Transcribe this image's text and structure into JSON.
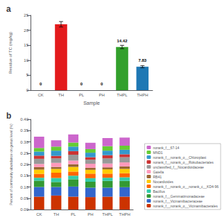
{
  "chart_data": [
    {
      "type": "bar",
      "title": "a",
      "categories": [
        "CK",
        "TH",
        "PL",
        "PH",
        "THPL",
        "THPH"
      ],
      "values": [
        0,
        22,
        0,
        0,
        14.42,
        7.83
      ],
      "errors": [
        0,
        0.9,
        0,
        0,
        0.55,
        0.35
      ],
      "colors": [
        "#e31a1c",
        "#e31a1c",
        "#e31a1c",
        "#e31a1c",
        "#33a02c",
        "#1f78b4"
      ],
      "data_labels": true,
      "value_labels": [
        "0",
        null,
        "0",
        "0",
        "14.42",
        "7.83"
      ],
      "xlabel": "Sample",
      "ylabel": "Residue of TC (mg/kg)",
      "ylim": [
        0,
        25
      ],
      "yticks": [
        0,
        5,
        10,
        15,
        20,
        25
      ],
      "grid": false
    },
    {
      "type": "bar",
      "title": "b",
      "stacked": true,
      "categories": [
        "CK",
        "TH",
        "PL",
        "PH",
        "THPL",
        "THPH"
      ],
      "ylabel": "Percent of community abundance on genus level (%)",
      "ylim": [
        0,
        0.4
      ],
      "yticks": [
        {
          "value": 0,
          "label": "0.00"
        },
        {
          "value": 0.05,
          "label": "0.05"
        },
        {
          "value": 0.1,
          "label": "0.10"
        },
        {
          "value": 0.15,
          "label": "0.15"
        },
        {
          "value": 0.2,
          "label": "0.20"
        },
        {
          "value": 0.25,
          "label": "0.25"
        },
        {
          "value": 0.3,
          "label": "0.30"
        },
        {
          "value": 0.35,
          "label": "0.35"
        },
        {
          "value": 0.4,
          "label": "0.40"
        }
      ],
      "grid": false,
      "legend": "right",
      "series": [
        {
          "name": "norank_f__norank_o__Vicinamibacterales",
          "color": "#cc3300",
          "values": [
            0.057,
            0.062,
            0.057,
            0.055,
            0.057,
            0.057
          ]
        },
        {
          "name": "norank_f__Vicinamibacteraceae",
          "color": "#3366cc",
          "values": [
            0.043,
            0.038,
            0.045,
            0.042,
            0.04,
            0.042
          ]
        },
        {
          "name": "norank_f__Gemmatimonadaceae",
          "color": "#339933",
          "values": [
            0.028,
            0.022,
            0.032,
            0.026,
            0.03,
            0.028
          ]
        },
        {
          "name": "Bacillus",
          "color": "#33ccaa",
          "values": [
            0.013,
            0.018,
            0.016,
            0.016,
            0.014,
            0.016
          ]
        },
        {
          "name": "norank_f__norank_o__norank_c__KD4-96",
          "color": "#ff6600",
          "values": [
            0.017,
            0.023,
            0.018,
            0.02,
            0.018,
            0.018
          ]
        },
        {
          "name": "Nocardioides",
          "color": "#ffcc00",
          "values": [
            0.019,
            0.017,
            0.021,
            0.017,
            0.019,
            0.019
          ]
        },
        {
          "name": "RB41",
          "color": "#996633",
          "values": [
            0.011,
            0.009,
            0.012,
            0.009,
            0.009,
            0.011
          ]
        },
        {
          "name": "Gaiella",
          "color": "#ff99bb",
          "values": [
            0.014,
            0.018,
            0.016,
            0.018,
            0.017,
            0.018
          ]
        },
        {
          "name": "unclassified_f__Nocardioidaceae",
          "color": "#999999",
          "values": [
            0.023,
            0.02,
            0.026,
            0.018,
            0.023,
            0.023
          ]
        },
        {
          "name": "norank_f__norank_o__Rokubacteriales",
          "color": "#cc3333",
          "values": [
            0.014,
            0.011,
            0.016,
            0.011,
            0.014,
            0.013
          ]
        },
        {
          "name": "norank_f__norank_o__Chloroplast",
          "color": "#3399cc",
          "values": [
            0.018,
            0.023,
            0.02,
            0.02,
            0.02,
            0.02
          ]
        },
        {
          "name": "MND1",
          "color": "#66cc33",
          "values": [
            0.016,
            0.018,
            0.018,
            0.016,
            0.02,
            0.018
          ]
        },
        {
          "name": "norank_f__67-14",
          "color": "#cc66cc",
          "values": [
            0.05,
            0.028,
            0.036,
            0.028,
            0.036,
            0.036
          ]
        }
      ]
    }
  ]
}
